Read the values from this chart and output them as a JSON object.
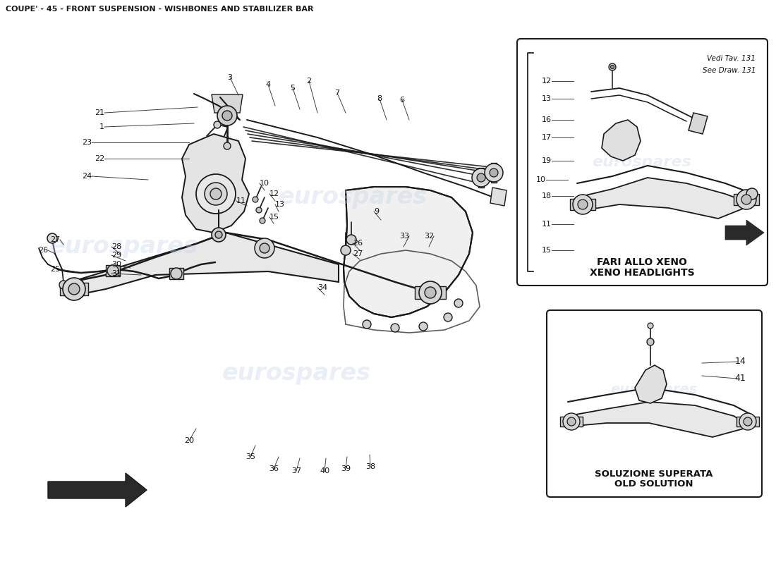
{
  "title": "COUPE' - 45 - FRONT SUSPENSION - WISHBONES AND STABILIZER BAR",
  "title_fontsize": 8,
  "title_color": "#1a1a1a",
  "bg_color": "#ffffff",
  "watermark_text": "eurospares",
  "watermark_color": "#c8d4e8",
  "watermark_alpha": 0.38,
  "box1_title_line1": "FARI ALLO XENO",
  "box1_title_line2": "XENO HEADLIGHTS",
  "box1_note1": "Vedi Tav. 131",
  "box1_note2": "See Draw. 131",
  "box2_title_line1": "SOLUZIONE SUPERATA",
  "box2_title_line2": "OLD SOLUTION",
  "line_color": "#1a1a1a",
  "fig_w": 11.0,
  "fig_h": 8.0,
  "dpi": 100
}
